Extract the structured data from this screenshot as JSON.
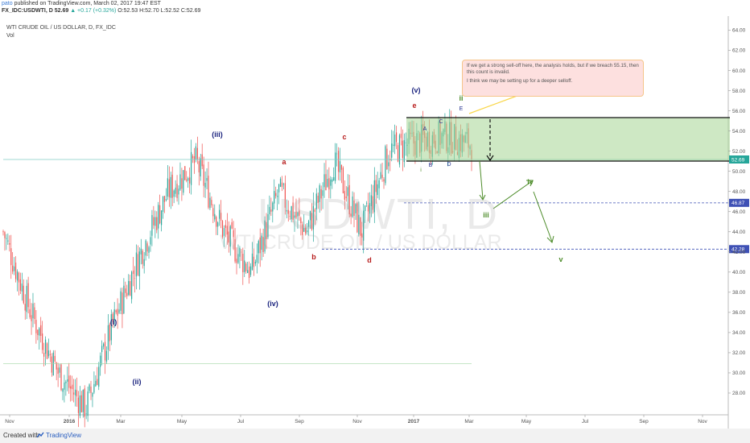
{
  "header": {
    "author": "pato",
    "published": "published on TradingView.com, March 02, 2017 19:47 EST",
    "symbol_line": "FX_IDC:USDWTI, D 52.69 ",
    "change": "▲ +0.17 (+0.32%)",
    "ohlc": " O:52.53 H:52.70 L:52.52 C:52.69"
  },
  "legend": {
    "title": "WTI CRUDE OIL / US DOLLAR, D, FX_IDC",
    "vol": "Vol"
  },
  "watermark": {
    "symbol": "USDWTI, D",
    "name": "WTI CRUDE OIL / US DOLLAR"
  },
  "note": {
    "line1": "If we get a strong sell-off here, the analysis holds, but if we breach 55.15, then this count is invalid.",
    "line2": "I think we may be setting up for a deeper selloff."
  },
  "footer": {
    "created": "Created with",
    "brand": "TradingView"
  },
  "colors": {
    "up": "#26a69a",
    "down": "#ef5350",
    "navy": "#1a237e",
    "maroon": "#b71c1c",
    "green": "#4d8c2a",
    "box": "#a5d694",
    "level": "#3f51b5"
  },
  "chart_data": {
    "type": "candlestick",
    "title": "WTI CRUDE OIL / US DOLLAR, D, FX_IDC",
    "ylim": [
      26,
      65
    ],
    "y_ticks": [
      "64.00",
      "62.00",
      "60.00",
      "58.00",
      "56.00",
      "54.00",
      "52.00",
      "50.00",
      "48.00",
      "46.00",
      "44.00",
      "42.00",
      "40.00",
      "38.00",
      "36.00",
      "34.00",
      "32.00",
      "30.00",
      "28.00"
    ],
    "x_ticks": [
      "Nov",
      "2016",
      "Mar",
      "May",
      "Jul",
      "Sep",
      "Nov",
      "2017",
      "Mar",
      "May",
      "Jul",
      "Sep",
      "Nov"
    ],
    "price_path": [
      {
        "date": "Nov",
        "price": 44
      },
      {
        "date": "Dec",
        "price": 36
      },
      {
        "date": "Jan",
        "price": 30
      },
      {
        "date": "Feb",
        "price": 26.5
      },
      {
        "date": "Mar",
        "price": 35
      },
      {
        "date": "Apr",
        "price": 42
      },
      {
        "date": "May",
        "price": 48
      },
      {
        "date": "Jun",
        "price": 51
      },
      {
        "date": "Jul",
        "price": 44
      },
      {
        "date": "Aug",
        "price": 40
      },
      {
        "date": "Aug",
        "price": 48
      },
      {
        "date": "Sep",
        "price": 44
      },
      {
        "date": "Oct",
        "price": 51
      },
      {
        "date": "Nov",
        "price": 44
      },
      {
        "date": "Dec",
        "price": 52
      },
      {
        "date": "Jan",
        "price": 53
      },
      {
        "date": "Feb",
        "price": 53.5
      },
      {
        "date": "Mar",
        "price": 52.69
      }
    ],
    "current_price": "52.69",
    "levels": [
      "46.87",
      "42.28"
    ],
    "wave_labels": [
      "(i)",
      "(ii)",
      "(iii)",
      "(iv)",
      "(v)",
      "a",
      "b",
      "c",
      "d",
      "e",
      "A",
      "B",
      "C",
      "D",
      "E",
      "i",
      "ii",
      "iii",
      "iv",
      "v"
    ]
  }
}
